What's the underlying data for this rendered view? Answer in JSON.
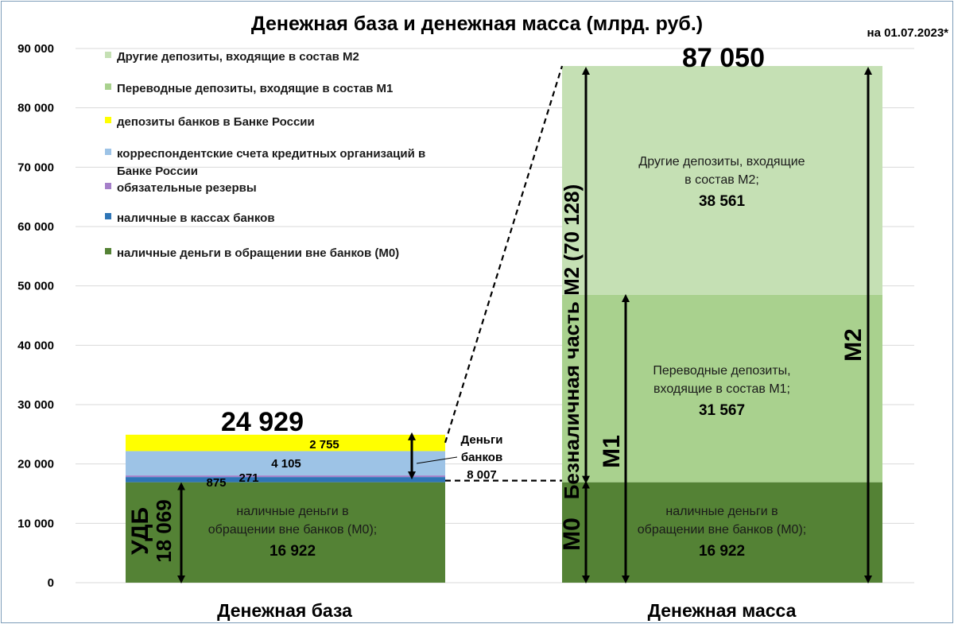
{
  "chart_data": {
    "type": "bar",
    "stacked": true,
    "title": "Денежная база и денежная масса (млрд. руб.)",
    "date_note": "на 01.07.2023*",
    "categories": [
      "Денежная база",
      "Денежная масса"
    ],
    "ylim": [
      0,
      90000
    ],
    "y_ticks": [
      0,
      10000,
      20000,
      30000,
      40000,
      50000,
      60000,
      70000,
      80000,
      90000
    ],
    "y_tick_labels": [
      "0",
      "10 000",
      "20 000",
      "30 000",
      "40 000",
      "50 000",
      "60 000",
      "70 000",
      "80 000",
      "90 000"
    ],
    "grid": true,
    "legend_position": "top-left",
    "totals": [
      {
        "category": "Денежная база",
        "value": 24929,
        "label": "24 929"
      },
      {
        "category": "Денежная масса",
        "value": 87050,
        "label": "87 050"
      }
    ],
    "series": [
      {
        "name": "наличные деньги в обращении вне банков (М0)",
        "color": "#548235",
        "values": [
          16922,
          16922
        ],
        "labels": [
          "",
          ""
        ]
      },
      {
        "name": "наличные в кассах банков",
        "color": "#2e75b6",
        "values": [
          875,
          0
        ],
        "labels": [
          "875",
          ""
        ]
      },
      {
        "name": "обязательные резервы",
        "color": "#a57fc9",
        "values": [
          271,
          0
        ],
        "labels": [
          "271",
          ""
        ]
      },
      {
        "name": "корреспондентские счета кредитных организаций в Банке России",
        "color": "#9dc3e6",
        "values": [
          4105,
          0
        ],
        "labels": [
          "4 105",
          ""
        ]
      },
      {
        "name": "депозиты банков в Банке России",
        "color": "#ffff00",
        "values": [
          2755,
          0
        ],
        "labels": [
          "2 755",
          ""
        ]
      },
      {
        "name": "Переводные депозиты, входящие в состав М1",
        "color": "#a9d18e",
        "values": [
          0,
          31567
        ],
        "labels": [
          "",
          ""
        ]
      },
      {
        "name": "Другие депозиты, входящие в состав М2",
        "color": "#c5e0b4",
        "values": [
          0,
          38561
        ],
        "labels": [
          "",
          ""
        ]
      }
    ],
    "legend": {
      "items": [
        {
          "label": "Другие депозиты, входящие в состав М2",
          "color": "#c5e0b4"
        },
        {
          "label": "Переводные депозиты, входящие в состав М1",
          "color": "#a9d18e"
        },
        {
          "label": "депозиты банков в Банке России",
          "color": "#ffff00"
        },
        {
          "label_line1": "корреспондентские счета кредитных организаций в",
          "label_line2": "Банке России",
          "color": "#9dc3e6"
        },
        {
          "label": "обязательные резервы",
          "color": "#a57fc9"
        },
        {
          "label": "наличные в кассах банков",
          "color": "#2e75b6"
        },
        {
          "label": "наличные деньги в обращении вне банков (М0)",
          "color": "#548235"
        }
      ]
    },
    "annotations": {
      "base_m0": {
        "line1": "наличные деньги в",
        "line2": "обращении вне банков (М0);",
        "value": "16 922"
      },
      "mass_m0": {
        "line1": "наличные деньги в",
        "line2": "обращении вне банков (М0);",
        "value": "16 922"
      },
      "mass_m1": {
        "line1": "Переводные депозиты,",
        "line2": "входящие в состав М1;",
        "value": "31 567"
      },
      "mass_m2": {
        "line1": "Другие депозиты, входящие",
        "line2": "в состав М2;",
        "value": "38 561"
      },
      "udb": {
        "label": "УДБ",
        "value": "18 069"
      },
      "bank_money": {
        "line1": "Деньги",
        "line2": "банков",
        "value": "8 007"
      },
      "m0_arrow": "М0",
      "m1_arrow": "М1",
      "m2_arrow": "М2",
      "noncash": "Безналичная часть М2 (70 128)"
    }
  }
}
